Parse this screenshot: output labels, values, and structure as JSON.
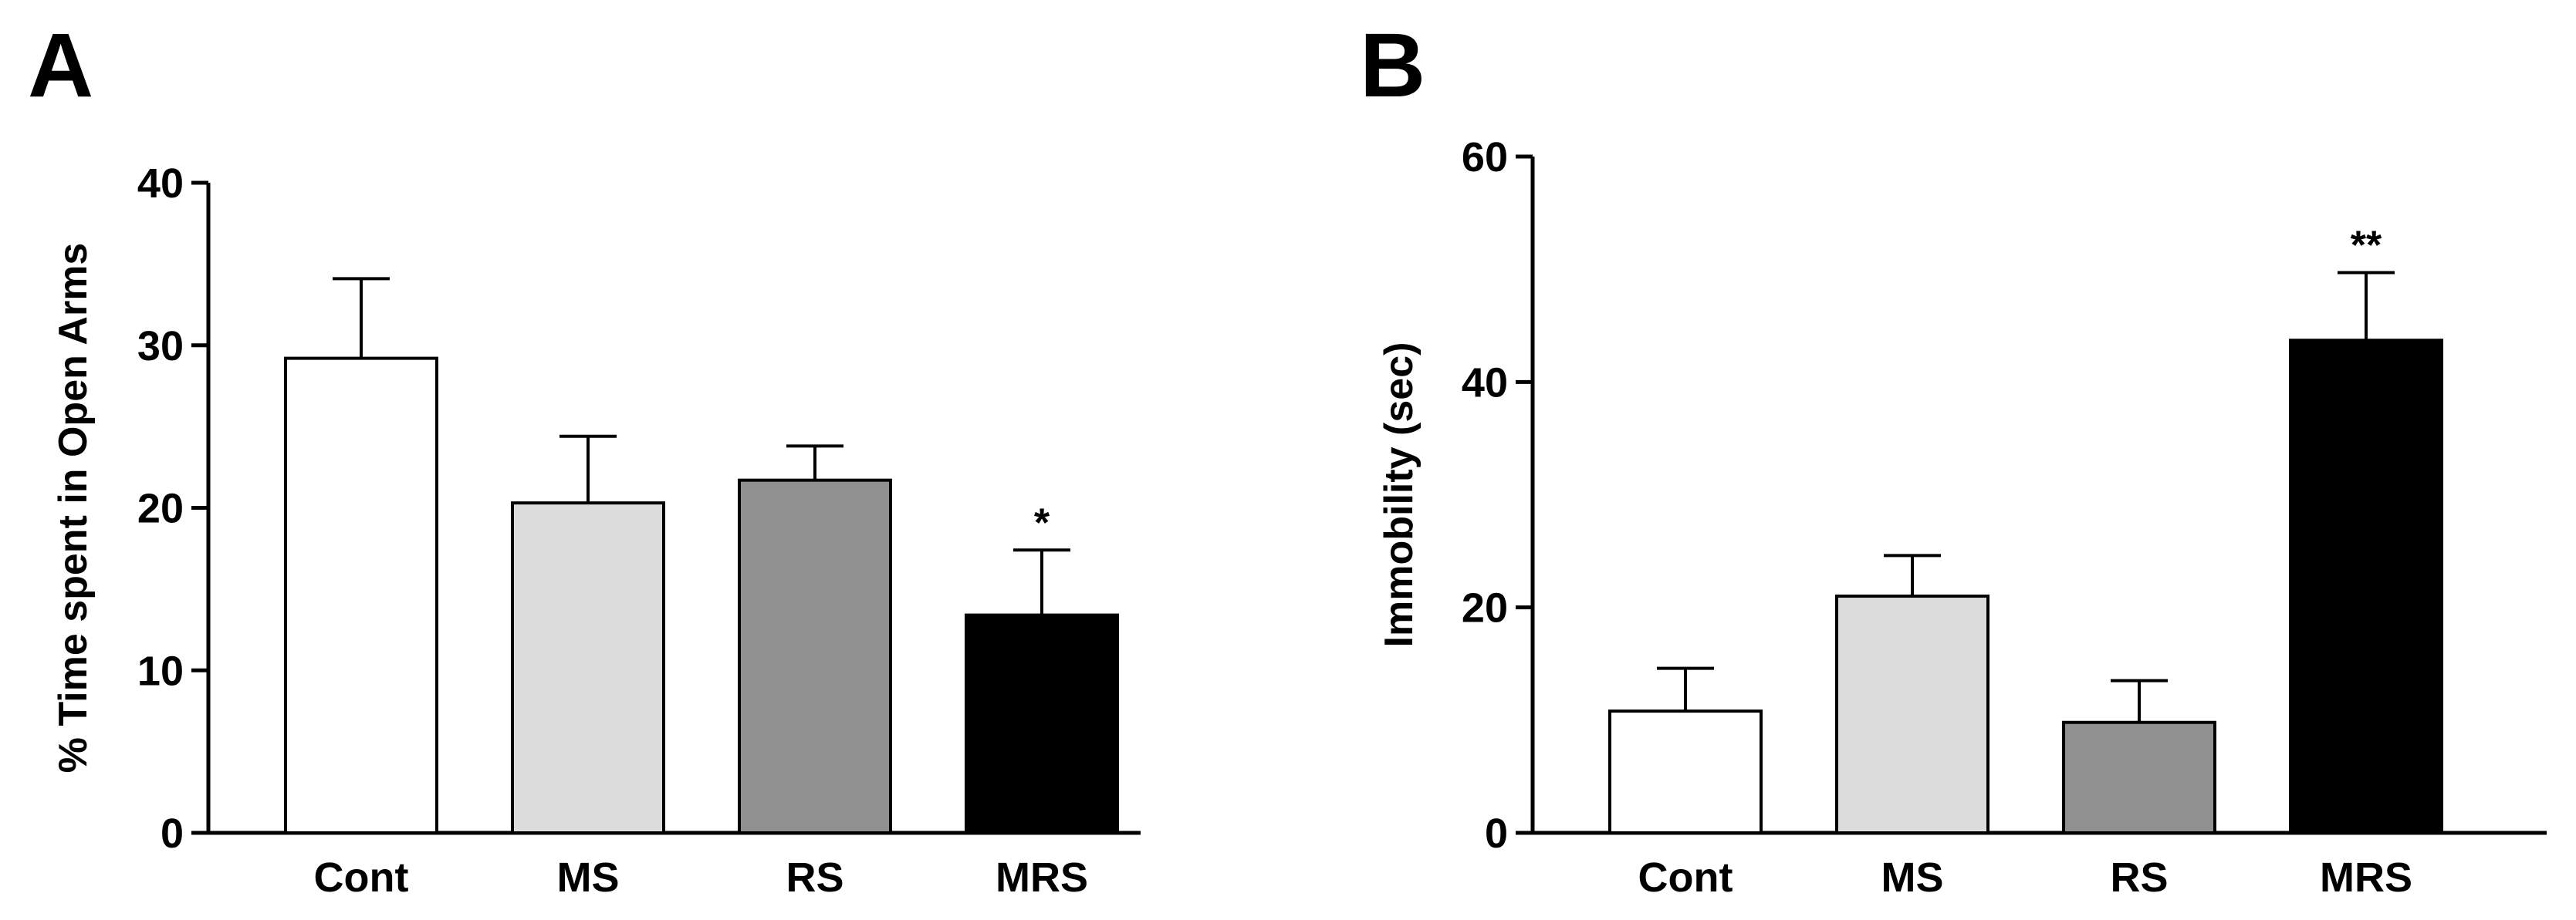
{
  "chart_data": [
    {
      "type": "bar",
      "panel_label": "A",
      "categories": [
        "Cont",
        "MS",
        "RS",
        "MRS"
      ],
      "values": [
        29.2,
        20.3,
        21.7,
        13.4
      ],
      "errors": [
        4.9,
        4.1,
        2.1,
        4.0
      ],
      "colors": [
        "#ffffff",
        "#dcdcdc",
        "#909090",
        "#000000"
      ],
      "significance": [
        "",
        "",
        "",
        "*"
      ],
      "ylabel": "% Time spent in Open Arms",
      "xlabel": "",
      "ylim": [
        0,
        40
      ],
      "yticks": [
        0,
        10,
        20,
        30,
        40
      ],
      "grid": false,
      "legend": "none"
    },
    {
      "type": "bar",
      "panel_label": "B",
      "categories": [
        "Cont",
        "MS",
        "RS",
        "MRS"
      ],
      "values": [
        10.8,
        21.0,
        9.8,
        43.7
      ],
      "errors": [
        3.8,
        3.6,
        3.7,
        6.0
      ],
      "colors": [
        "#ffffff",
        "#dcdcdc",
        "#909090",
        "#000000"
      ],
      "significance": [
        "",
        "",
        "",
        "**"
      ],
      "ylabel": "Immobility (sec)",
      "xlabel": "",
      "ylim": [
        0,
        60
      ],
      "yticks": [
        0,
        20,
        40,
        60
      ],
      "grid": false,
      "legend": "none"
    }
  ]
}
